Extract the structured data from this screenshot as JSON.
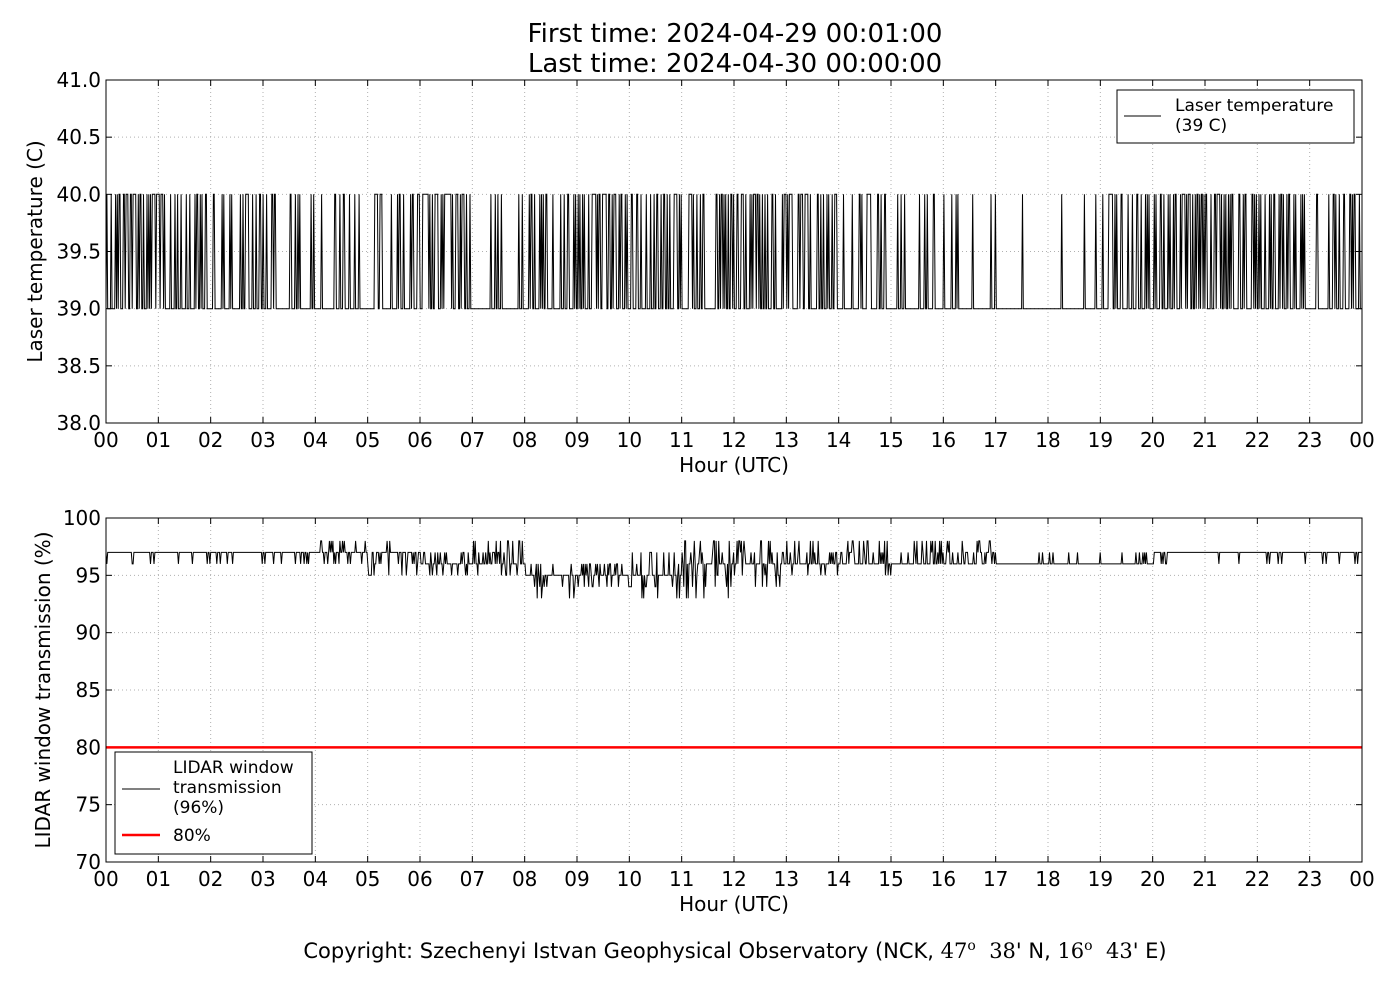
{
  "header": {
    "first_time": "First time: 2024-04-29 00:01:00",
    "last_time": "Last time: 2024-04-30 00:00:00"
  },
  "footer": {
    "prefix": "Copyright: Szechenyi Istvan Geophysical Observatory (NCK, ",
    "lat_deg": "47",
    "lat_sup": "o",
    "lat_min": "38",
    "lat_suffix": "' N, ",
    "lon_deg": "16",
    "lon_sup": "o",
    "lon_min": "43",
    "lon_suffix": "' E)"
  },
  "colors": {
    "line": "#000000",
    "threshold": "#ff0000",
    "grid": "#b0b0b0"
  },
  "chart_data": [
    {
      "type": "line",
      "title": "",
      "xlabel": "Hour (UTC)",
      "ylabel": "Laser temperature (C)",
      "xlim": [
        0,
        24
      ],
      "ylim": [
        38.0,
        41.0
      ],
      "x_ticks": [
        "00",
        "01",
        "02",
        "03",
        "04",
        "05",
        "06",
        "07",
        "08",
        "09",
        "10",
        "11",
        "12",
        "13",
        "14",
        "15",
        "16",
        "17",
        "18",
        "19",
        "20",
        "21",
        "22",
        "23",
        "00"
      ],
      "y_ticks": [
        "38.0",
        "38.5",
        "39.0",
        "39.5",
        "40.0",
        "40.5",
        "41.0"
      ],
      "grid": true,
      "legend_position": "top-right",
      "series": [
        {
          "name": "Laser temperature\n(39 C)",
          "color": "#000000",
          "baseline": 39,
          "spike_to": 40,
          "spike_density_by_hour": [
            0.9,
            0.65,
            0.5,
            0.55,
            0.35,
            0.6,
            0.85,
            0.25,
            0.55,
            0.95,
            0.75,
            0.55,
            0.6,
            0.55,
            0.35,
            0.3,
            0.2,
            0.05,
            0.15,
            0.45,
            0.8,
            0.75,
            0.55,
            0.55
          ]
        }
      ]
    },
    {
      "type": "line",
      "title": "",
      "xlabel": "Hour (UTC)",
      "ylabel": "LIDAR window transmission (%)",
      "xlim": [
        0,
        24
      ],
      "ylim": [
        70,
        100
      ],
      "x_ticks": [
        "00",
        "01",
        "02",
        "03",
        "04",
        "05",
        "06",
        "07",
        "08",
        "09",
        "10",
        "11",
        "12",
        "13",
        "14",
        "15",
        "16",
        "17",
        "18",
        "19",
        "20",
        "21",
        "22",
        "23",
        "00"
      ],
      "y_ticks": [
        "70",
        "75",
        "80",
        "85",
        "90",
        "95",
        "100"
      ],
      "grid": true,
      "legend_position": "bottom-left",
      "series": [
        {
          "name": "LIDAR window\ntransmission\n(96%)",
          "color": "#000000",
          "hourly_profile": [
            {
              "hour": 0,
              "base": 97,
              "low": 96,
              "high": 97
            },
            {
              "hour": 1,
              "base": 97,
              "low": 96,
              "high": 97
            },
            {
              "hour": 2,
              "base": 97,
              "low": 96,
              "high": 97
            },
            {
              "hour": 3,
              "base": 97,
              "low": 96,
              "high": 97
            },
            {
              "hour": 4,
              "base": 97,
              "low": 96,
              "high": 98
            },
            {
              "hour": 5,
              "base": 97,
              "low": 95,
              "high": 98
            },
            {
              "hour": 6,
              "base": 96,
              "low": 95,
              "high": 97
            },
            {
              "hour": 7,
              "base": 96,
              "low": 95,
              "high": 98
            },
            {
              "hour": 8,
              "base": 95,
              "low": 93,
              "high": 96
            },
            {
              "hour": 9,
              "base": 95,
              "low": 94,
              "high": 96
            },
            {
              "hour": 10,
              "base": 95,
              "low": 93,
              "high": 97
            },
            {
              "hour": 11,
              "base": 96,
              "low": 93,
              "high": 98
            },
            {
              "hour": 12,
              "base": 96,
              "low": 94,
              "high": 98
            },
            {
              "hour": 13,
              "base": 96,
              "low": 95,
              "high": 98
            },
            {
              "hour": 14,
              "base": 96,
              "low": 95,
              "high": 98
            },
            {
              "hour": 15,
              "base": 96,
              "low": 96,
              "high": 98
            },
            {
              "hour": 16,
              "base": 96,
              "low": 96,
              "high": 98
            },
            {
              "hour": 17,
              "base": 96,
              "low": 96,
              "high": 97
            },
            {
              "hour": 18,
              "base": 96,
              "low": 96,
              "high": 97
            },
            {
              "hour": 19,
              "base": 96,
              "low": 96,
              "high": 97
            },
            {
              "hour": 20,
              "base": 97,
              "low": 96,
              "high": 97
            },
            {
              "hour": 21,
              "base": 97,
              "low": 96,
              "high": 97
            },
            {
              "hour": 22,
              "base": 97,
              "low": 96,
              "high": 97
            },
            {
              "hour": 23,
              "base": 97,
              "low": 96,
              "high": 97
            }
          ]
        },
        {
          "name": "80%",
          "color": "#ff0000",
          "values": [
            80,
            80
          ],
          "x": [
            0,
            24
          ]
        }
      ]
    }
  ]
}
